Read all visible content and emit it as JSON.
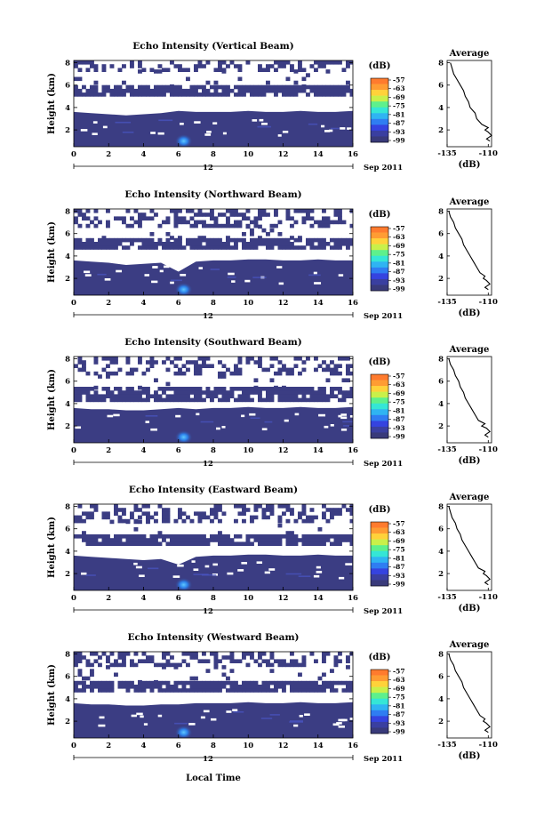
{
  "figure": {
    "xlabel": "Local Time",
    "date_label": "Sep 2011",
    "date_marker": "12"
  },
  "colorbar": {
    "unit": "(dB)",
    "tick_labels": [
      "-57",
      "-63",
      "-69",
      "-75",
      "-81",
      "-87",
      "-93",
      "-99"
    ],
    "colors": [
      "#ff7b2e",
      "#ff9c33",
      "#ffd23a",
      "#c9f04a",
      "#5ef08c",
      "#35e6d6",
      "#2fb4f2",
      "#2f7df2",
      "#3543e0",
      "#3a3fa0",
      "#393a7a"
    ]
  },
  "colors": {
    "background_echo": "#3b3d83",
    "hotspot": "#2c7ee8"
  },
  "chart_data": [
    {
      "type": "heatmap",
      "title": "Echo Intensity (Vertical Beam)",
      "ylabel": "Height (km)",
      "xlim": [
        0,
        16
      ],
      "ylim": [
        0.5,
        8.2
      ],
      "x_ticks": [
        "0",
        "2",
        "4",
        "6",
        "8",
        "10",
        "12",
        "14",
        "16"
      ],
      "y_ticks": [
        "2",
        "4",
        "6",
        "8"
      ],
      "solid_echo_top_km": [
        3.6,
        3.5,
        3.4,
        3.3,
        3.4,
        3.5,
        3.7,
        3.6,
        3.6,
        3.6,
        3.7,
        3.6,
        3.6,
        3.7,
        3.6,
        3.6,
        3.7
      ],
      "lower_band_km": [
        5.0,
        6.0
      ],
      "upper_band_km": [
        7.4,
        8.2
      ],
      "hotspot": {
        "x": 6.3,
        "y": 1.0
      },
      "profile": {
        "title": "Average",
        "xlabel": "(dB)",
        "x_ticks": [
          "-135",
          "-110"
        ],
        "xlim": [
          -135,
          -108
        ],
        "y_ticks": [
          "2",
          "4",
          "6",
          "8"
        ],
        "height_km": [
          1.0,
          1.2,
          1.5,
          1.8,
          2.0,
          2.2,
          2.5,
          3.0,
          3.5,
          4.0,
          4.5,
          5.0,
          5.5,
          6.0,
          6.5,
          7.0,
          7.5,
          8.0
        ],
        "db": [
          -109,
          -111,
          -108,
          -110,
          -112,
          -110,
          -114,
          -117,
          -118,
          -121,
          -122,
          -124,
          -125,
          -127,
          -129,
          -131,
          -132,
          -133
        ]
      }
    },
    {
      "type": "heatmap",
      "title": "Echo Intensity (Northward Beam)",
      "ylabel": "Height (km)",
      "xlim": [
        0,
        16
      ],
      "ylim": [
        0.5,
        8.2
      ],
      "x_ticks": [
        "0",
        "2",
        "4",
        "6",
        "8",
        "10",
        "12",
        "14",
        "16"
      ],
      "y_ticks": [
        "2",
        "4",
        "6",
        "8"
      ],
      "solid_echo_top_km": [
        3.6,
        3.5,
        3.4,
        3.2,
        3.3,
        3.4,
        2.6,
        3.5,
        3.6,
        3.6,
        3.7,
        3.7,
        3.6,
        3.6,
        3.7,
        3.6,
        3.6
      ],
      "lower_band_km": [
        4.6,
        5.6
      ],
      "upper_band_km": [
        6.8,
        8.2
      ],
      "hotspot": {
        "x": 6.3,
        "y": 1.0
      },
      "profile": {
        "title": "Average",
        "xlabel": "(dB)",
        "x_ticks": [
          "-135",
          "-110"
        ],
        "xlim": [
          -135,
          -108
        ],
        "y_ticks": [
          "2",
          "4",
          "6",
          "8"
        ],
        "height_km": [
          1.0,
          1.2,
          1.5,
          1.8,
          2.0,
          2.2,
          2.5,
          3.0,
          3.5,
          4.0,
          4.5,
          5.0,
          5.5,
          6.0,
          6.5,
          7.0,
          7.5,
          8.0
        ],
        "db": [
          -110,
          -112,
          -109,
          -111,
          -113,
          -112,
          -115,
          -117,
          -119,
          -121,
          -123,
          -125,
          -126,
          -128,
          -130,
          -131,
          -133,
          -134
        ]
      }
    },
    {
      "type": "heatmap",
      "title": "Echo Intensity (Southward Beam)",
      "ylabel": "Height (km)",
      "xlim": [
        0,
        16
      ],
      "ylim": [
        0.5,
        8.2
      ],
      "x_ticks": [
        "0",
        "2",
        "4",
        "6",
        "8",
        "10",
        "12",
        "14",
        "16"
      ],
      "y_ticks": [
        "2",
        "4",
        "6",
        "8"
      ],
      "solid_echo_top_km": [
        3.6,
        3.5,
        3.5,
        3.4,
        3.4,
        3.5,
        3.6,
        3.5,
        3.6,
        3.6,
        3.7,
        3.6,
        3.6,
        3.7,
        3.6,
        3.6,
        3.7
      ],
      "lower_band_km": [
        4.4,
        5.5
      ],
      "upper_band_km": [
        6.6,
        8.2
      ],
      "hotspot": {
        "x": 6.3,
        "y": 1.0
      },
      "profile": {
        "title": "Average",
        "xlabel": "(dB)",
        "x_ticks": [
          "-135",
          "-110"
        ],
        "xlim": [
          -135,
          -108
        ],
        "y_ticks": [
          "2",
          "4",
          "6",
          "8"
        ],
        "height_km": [
          1.0,
          1.2,
          1.5,
          1.8,
          2.0,
          2.2,
          2.5,
          3.0,
          3.5,
          4.0,
          4.5,
          5.0,
          5.5,
          6.0,
          6.5,
          7.0,
          7.5,
          8.0
        ],
        "db": [
          -110,
          -112,
          -109,
          -111,
          -114,
          -112,
          -116,
          -118,
          -120,
          -122,
          -124,
          -125,
          -127,
          -128,
          -130,
          -131,
          -133,
          -134
        ]
      }
    },
    {
      "type": "heatmap",
      "title": "Echo Intensity (Eastward Beam)",
      "ylabel": "Height (km)",
      "xlim": [
        0,
        16
      ],
      "ylim": [
        0.5,
        8.2
      ],
      "x_ticks": [
        "0",
        "2",
        "4",
        "6",
        "8",
        "10",
        "12",
        "14",
        "16"
      ],
      "y_ticks": [
        "2",
        "4",
        "6",
        "8"
      ],
      "solid_echo_top_km": [
        3.6,
        3.5,
        3.4,
        3.3,
        3.2,
        3.3,
        2.8,
        3.5,
        3.6,
        3.6,
        3.7,
        3.7,
        3.6,
        3.6,
        3.7,
        3.6,
        3.6
      ],
      "lower_band_km": [
        4.6,
        5.5
      ],
      "upper_band_km": [
        6.8,
        8.2
      ],
      "hotspot": {
        "x": 6.3,
        "y": 1.0
      },
      "profile": {
        "title": "Average",
        "xlabel": "(dB)",
        "x_ticks": [
          "-135",
          "-110"
        ],
        "xlim": [
          -135,
          -108
        ],
        "y_ticks": [
          "2",
          "4",
          "6",
          "8"
        ],
        "height_km": [
          1.0,
          1.2,
          1.5,
          1.8,
          2.0,
          2.2,
          2.5,
          3.0,
          3.5,
          4.0,
          4.5,
          5.0,
          5.5,
          6.0,
          6.5,
          7.0,
          7.5,
          8.0
        ],
        "db": [
          -110,
          -112,
          -109,
          -111,
          -113,
          -112,
          -116,
          -118,
          -120,
          -122,
          -124,
          -126,
          -127,
          -129,
          -130,
          -132,
          -133,
          -134
        ]
      }
    },
    {
      "type": "heatmap",
      "title": "Echo Intensity (Westward Beam)",
      "ylabel": "Height (km)",
      "xlim": [
        0,
        16
      ],
      "ylim": [
        0.5,
        8.2
      ],
      "x_ticks": [
        "0",
        "2",
        "4",
        "6",
        "8",
        "10",
        "12",
        "14",
        "16"
      ],
      "y_ticks": [
        "2",
        "4",
        "6",
        "8"
      ],
      "solid_echo_top_km": [
        3.6,
        3.5,
        3.5,
        3.4,
        3.4,
        3.5,
        3.5,
        3.6,
        3.6,
        3.6,
        3.7,
        3.6,
        3.6,
        3.7,
        3.6,
        3.6,
        3.7
      ],
      "lower_band_km": [
        4.6,
        5.6
      ],
      "upper_band_km": [
        7.0,
        8.2
      ],
      "hotspot": {
        "x": 6.3,
        "y": 1.0
      },
      "profile": {
        "title": "Average",
        "xlabel": "(dB)",
        "x_ticks": [
          "-135",
          "-110"
        ],
        "xlim": [
          -135,
          -108
        ],
        "y_ticks": [
          "2",
          "4",
          "6",
          "8"
        ],
        "height_km": [
          1.0,
          1.2,
          1.5,
          1.8,
          2.0,
          2.2,
          2.5,
          3.0,
          3.5,
          4.0,
          4.5,
          5.0,
          5.5,
          6.0,
          6.5,
          7.0,
          7.5,
          8.0
        ],
        "db": [
          -110,
          -112,
          -109,
          -111,
          -113,
          -112,
          -115,
          -117,
          -119,
          -121,
          -123,
          -125,
          -126,
          -128,
          -130,
          -131,
          -133,
          -134
        ]
      }
    }
  ]
}
